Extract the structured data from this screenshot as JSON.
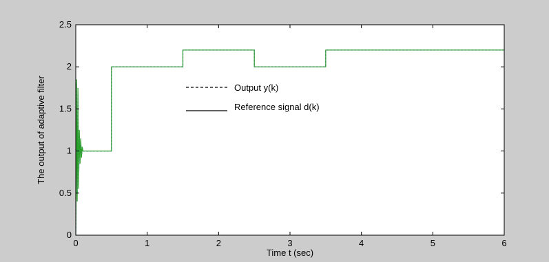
{
  "chart_data": {
    "type": "line",
    "title": "",
    "xlabel": "Time t (sec)",
    "ylabel": "The output of adaptive filter",
    "xlim": [
      0,
      6
    ],
    "ylim": [
      0,
      2.5
    ],
    "xticks": [
      "0",
      "1",
      "2",
      "3",
      "4",
      "5",
      "6"
    ],
    "yticks": [
      "0",
      "0.5",
      "1",
      "1.5",
      "2",
      "2.5"
    ],
    "grid": false,
    "legend_position": "upper-middle",
    "colors": {
      "figure_background": "#cccccc",
      "plot_background": "#ffffff",
      "output_line": "#2222cc",
      "reference_line": "#2ca02c"
    },
    "series": [
      {
        "name": "Output y(k)",
        "line_style": "dashed",
        "x": [
          0,
          0.005,
          0.01,
          0.02,
          0.03,
          0.04,
          0.05,
          0.06,
          0.07,
          0.08,
          0.09,
          0.1,
          0.12,
          0.5,
          0.5,
          1.5,
          1.5,
          2.5,
          2.5,
          3.5,
          3.5,
          6
        ],
        "y": [
          0,
          0.6,
          1.8,
          0.5,
          1.7,
          0.6,
          1.2,
          0.9,
          1.1,
          0.95,
          1.02,
          1.0,
          1.0,
          1.0,
          2.0,
          2.0,
          2.2,
          2.2,
          2.0,
          2.0,
          2.2,
          2.2
        ]
      },
      {
        "name": "Reference signal d(k)",
        "line_style": "solid",
        "x": [
          0,
          0.005,
          0.01,
          0.02,
          0.03,
          0.04,
          0.05,
          0.06,
          0.07,
          0.08,
          0.09,
          0.1,
          0.12,
          0.5,
          0.5,
          1.5,
          1.5,
          2.5,
          2.5,
          3.5,
          3.5,
          6
        ],
        "y": [
          0,
          0.5,
          1.85,
          0.4,
          1.75,
          0.55,
          1.25,
          0.85,
          1.15,
          0.92,
          1.05,
          1.0,
          1.0,
          1.0,
          2.0,
          2.0,
          2.2,
          2.2,
          2.0,
          2.0,
          2.2,
          2.2
        ]
      }
    ]
  }
}
